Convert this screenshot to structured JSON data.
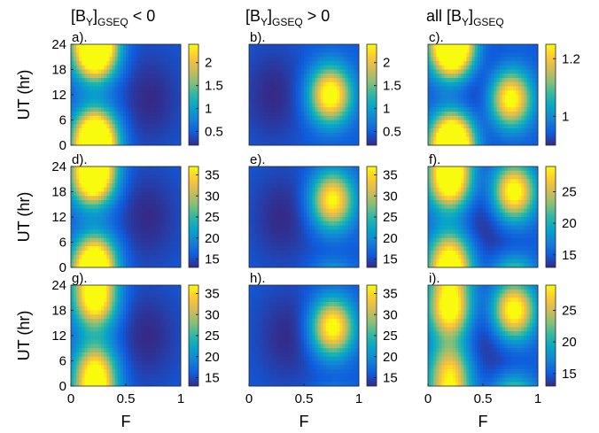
{
  "figure": {
    "col_titles": [
      {
        "main": "[B",
        "sub1": "Y",
        "mid": "]",
        "sub2": "GSEQ",
        "tail": " < 0"
      },
      {
        "main": "[B",
        "sub1": "Y",
        "mid": "]",
        "sub2": "GSEQ",
        "tail": " > 0"
      },
      {
        "main": "all [B",
        "sub1": "Y",
        "mid": "]",
        "sub2": "GSEQ",
        "tail": ""
      }
    ],
    "ylabel": "UT (hr)",
    "xlabel": "F",
    "colormap": "parula",
    "parula_stops": [
      "#352a87",
      "#0f5cdd",
      "#1481d6",
      "#06a4ca",
      "#2eb7a4",
      "#87bf77",
      "#d1bb59",
      "#fec832",
      "#f9fb0e"
    ]
  },
  "chart_data": [
    {
      "type": "heatmap",
      "panel_label": "a).",
      "x_label": "",
      "y_label": "UT (hr)",
      "xlim": [
        0,
        1
      ],
      "ylim": [
        0,
        24
      ],
      "x_ticks": [],
      "y_ticks": [
        0,
        6,
        12,
        18,
        24
      ],
      "clim": [
        0.2,
        2.4
      ],
      "colorbar_ticks": [
        {
          "v": 0.5,
          "label": "0.5"
        },
        {
          "v": 1,
          "label": "1"
        },
        {
          "v": 1.5,
          "label": "1.5"
        },
        {
          "v": 2,
          "label": "2"
        }
      ],
      "peaks": [
        {
          "f": 0.22,
          "ut": 21.5,
          "amp": 1.0
        },
        {
          "f": 0.22,
          "ut": 2.5,
          "amp": 1.0
        }
      ],
      "trough": {
        "f": 0.72,
        "ut": 11
      }
    },
    {
      "type": "heatmap",
      "panel_label": "b).",
      "x_label": "",
      "y_label": "",
      "xlim": [
        0,
        1
      ],
      "ylim": [
        0,
        24
      ],
      "x_ticks": [],
      "y_ticks": [],
      "clim": [
        0.2,
        2.4
      ],
      "colorbar_ticks": [
        {
          "v": 0.5,
          "label": "0.5"
        },
        {
          "v": 1,
          "label": "1"
        },
        {
          "v": 1.5,
          "label": "1.5"
        },
        {
          "v": 2,
          "label": "2"
        }
      ],
      "peaks": [
        {
          "f": 0.74,
          "ut": 12,
          "amp": 1.0
        }
      ],
      "trough": {
        "f": 0.22,
        "ut": 12
      }
    },
    {
      "type": "heatmap",
      "panel_label": "c).",
      "x_label": "",
      "y_label": "",
      "xlim": [
        0,
        1
      ],
      "ylim": [
        0,
        24
      ],
      "x_ticks": [],
      "y_ticks": [],
      "clim": [
        0.9,
        1.25
      ],
      "colorbar_ticks": [
        {
          "v": 1,
          "label": "1"
        },
        {
          "v": 1.2,
          "label": "1.2"
        }
      ],
      "peaks": [
        {
          "f": 0.22,
          "ut": 22,
          "amp": 1.0
        },
        {
          "f": 0.22,
          "ut": 2,
          "amp": 0.85
        },
        {
          "f": 0.75,
          "ut": 11,
          "amp": 1.0
        }
      ],
      "trough": {
        "f": 0.5,
        "ut": 12
      }
    },
    {
      "type": "heatmap",
      "panel_label": "d).",
      "x_label": "",
      "y_label": "UT (hr)",
      "xlim": [
        0,
        1
      ],
      "ylim": [
        0,
        24
      ],
      "x_ticks": [],
      "y_ticks": [
        0,
        6,
        12,
        18,
        24
      ],
      "clim": [
        13,
        37
      ],
      "colorbar_ticks": [
        {
          "v": 15,
          "label": "15"
        },
        {
          "v": 20,
          "label": "20"
        },
        {
          "v": 25,
          "label": "25"
        },
        {
          "v": 30,
          "label": "30"
        },
        {
          "v": 35,
          "label": "35"
        }
      ],
      "peaks": [
        {
          "f": 0.2,
          "ut": 21,
          "amp": 1.0
        },
        {
          "f": 0.22,
          "ut": 2,
          "amp": 0.75
        }
      ],
      "trough": {
        "f": 0.7,
        "ut": 12
      }
    },
    {
      "type": "heatmap",
      "panel_label": "e).",
      "x_label": "",
      "y_label": "",
      "xlim": [
        0,
        1
      ],
      "ylim": [
        0,
        24
      ],
      "x_ticks": [],
      "y_ticks": [],
      "clim": [
        13,
        37
      ],
      "colorbar_ticks": [
        {
          "v": 15,
          "label": "15"
        },
        {
          "v": 20,
          "label": "20"
        },
        {
          "v": 25,
          "label": "25"
        },
        {
          "v": 30,
          "label": "30"
        },
        {
          "v": 35,
          "label": "35"
        }
      ],
      "peaks": [
        {
          "f": 0.76,
          "ut": 16,
          "amp": 0.9
        }
      ],
      "trough": {
        "f": 0.3,
        "ut": 12
      }
    },
    {
      "type": "heatmap",
      "panel_label": "f).",
      "x_label": "",
      "y_label": "",
      "xlim": [
        0,
        1
      ],
      "ylim": [
        0,
        24
      ],
      "x_ticks": [],
      "y_ticks": [],
      "clim": [
        13,
        29
      ],
      "colorbar_ticks": [
        {
          "v": 15,
          "label": "15"
        },
        {
          "v": 20,
          "label": "20"
        },
        {
          "v": 25,
          "label": "25"
        }
      ],
      "peaks": [
        {
          "f": 0.2,
          "ut": 20,
          "amp": 1.0
        },
        {
          "f": 0.78,
          "ut": 18,
          "amp": 1.0
        },
        {
          "f": 0.2,
          "ut": 3,
          "amp": 0.7
        }
      ],
      "trough": {
        "f": 0.5,
        "ut": 12
      }
    },
    {
      "type": "heatmap",
      "panel_label": "g).",
      "x_label": "F",
      "y_label": "UT (hr)",
      "xlim": [
        0,
        1
      ],
      "ylim": [
        0,
        24
      ],
      "x_ticks": [
        0,
        0.5,
        1
      ],
      "y_ticks": [
        0,
        6,
        12,
        18,
        24
      ],
      "clim": [
        13,
        37
      ],
      "colorbar_ticks": [
        {
          "v": 15,
          "label": "15"
        },
        {
          "v": 20,
          "label": "20"
        },
        {
          "v": 25,
          "label": "25"
        },
        {
          "v": 30,
          "label": "30"
        },
        {
          "v": 35,
          "label": "35"
        }
      ],
      "peaks": [
        {
          "f": 0.22,
          "ut": 20,
          "amp": 0.9
        },
        {
          "f": 0.22,
          "ut": 4,
          "amp": 0.8
        }
      ],
      "trough": {
        "f": 0.7,
        "ut": 12
      }
    },
    {
      "type": "heatmap",
      "panel_label": "h).",
      "x_label": "F",
      "y_label": "",
      "xlim": [
        0,
        1
      ],
      "ylim": [
        0,
        24
      ],
      "x_ticks": [
        0,
        0.5,
        1
      ],
      "y_ticks": [],
      "clim": [
        13,
        37
      ],
      "colorbar_ticks": [
        {
          "v": 15,
          "label": "15"
        },
        {
          "v": 20,
          "label": "20"
        },
        {
          "v": 25,
          "label": "25"
        },
        {
          "v": 30,
          "label": "30"
        },
        {
          "v": 35,
          "label": "35"
        }
      ],
      "peaks": [
        {
          "f": 0.76,
          "ut": 14,
          "amp": 0.95
        }
      ],
      "trough": {
        "f": 0.35,
        "ut": 12
      }
    },
    {
      "type": "heatmap",
      "panel_label": "i).",
      "x_label": "F",
      "y_label": "",
      "xlim": [
        0,
        1
      ],
      "ylim": [
        0,
        24
      ],
      "x_ticks": [
        0,
        0.5,
        1
      ],
      "y_ticks": [],
      "clim": [
        13,
        29
      ],
      "colorbar_ticks": [
        {
          "v": 15,
          "label": "15"
        },
        {
          "v": 20,
          "label": "20"
        },
        {
          "v": 25,
          "label": "25"
        }
      ],
      "peaks": [
        {
          "f": 0.2,
          "ut": 18,
          "amp": 1.0
        },
        {
          "f": 0.78,
          "ut": 18,
          "amp": 1.0
        },
        {
          "f": 0.2,
          "ut": 4,
          "amp": 0.75
        }
      ],
      "trough": {
        "f": 0.5,
        "ut": 12
      }
    }
  ]
}
